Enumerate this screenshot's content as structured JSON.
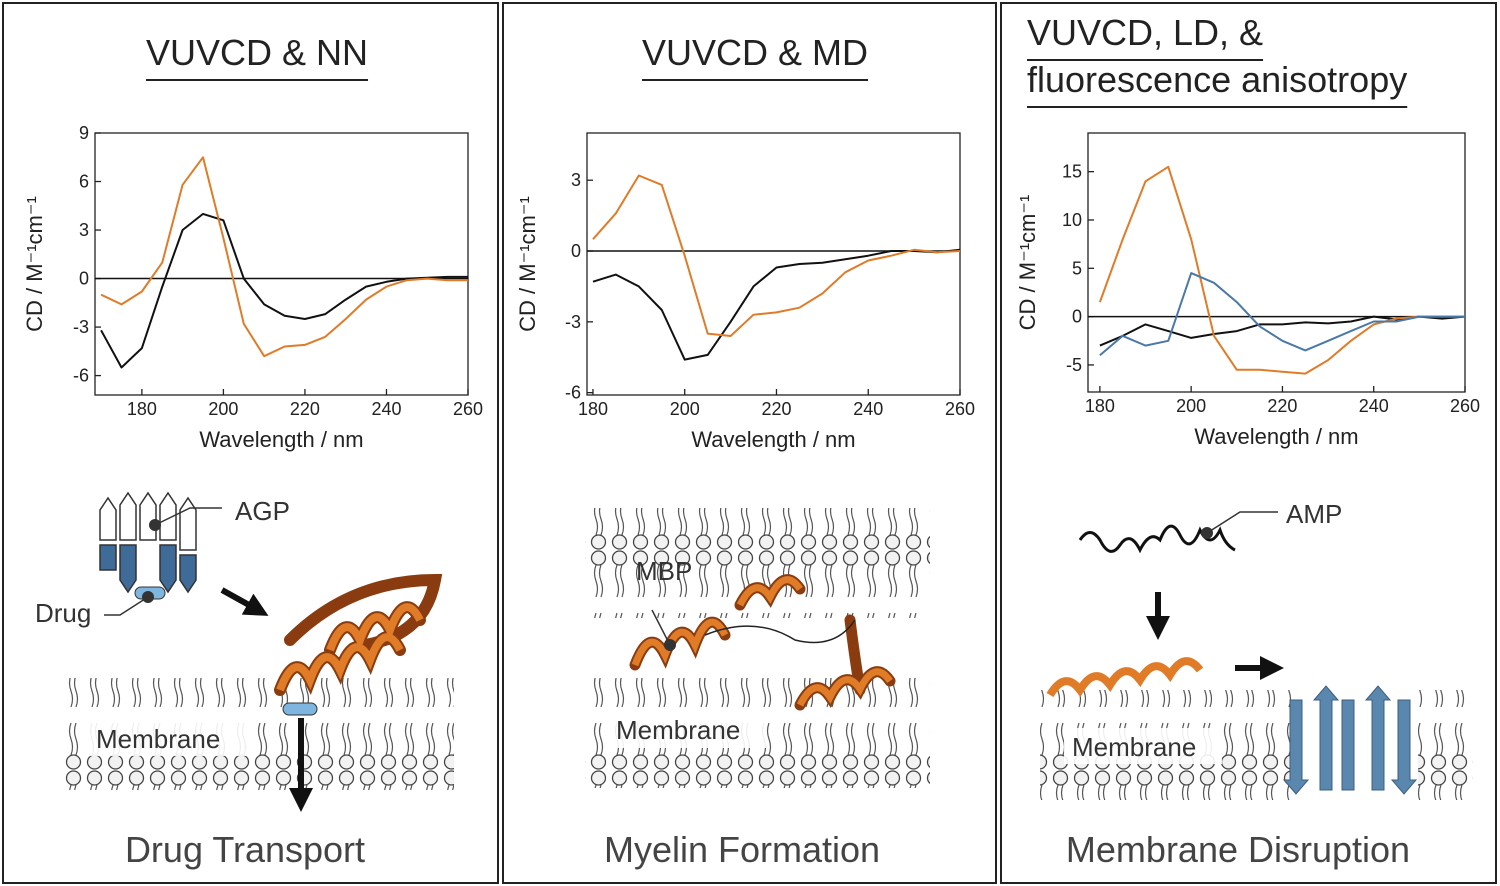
{
  "chart_data": [
    {
      "type": "line",
      "title": [
        "VUVCD & NN"
      ],
      "xlabel": "Wavelength / nm",
      "ylabel": "CD / M⁻¹cm⁻¹",
      "x": [
        170,
        175,
        180,
        185,
        190,
        195,
        200,
        205,
        210,
        215,
        220,
        225,
        230,
        235,
        240,
        245,
        250,
        255,
        260
      ],
      "xlim": [
        168.5,
        260
      ],
      "xticks": [
        180,
        200,
        220,
        240,
        260
      ],
      "ylim": [
        -7.2,
        9
      ],
      "yticks": [
        -6,
        -3,
        0,
        3,
        6,
        9
      ],
      "series": [
        {
          "color": "#111111",
          "values": [
            -3.2,
            -5.5,
            -4.3,
            -0.5,
            3,
            4,
            3.6,
            0,
            -1.6,
            -2.3,
            -2.5,
            -2.2,
            -1.3,
            -0.5,
            -0.2,
            0,
            0.05,
            0.1,
            0.1
          ]
        },
        {
          "color": "#e07b28",
          "values": [
            -1,
            -1.6,
            -0.8,
            1,
            5.8,
            7.5,
            2.5,
            -2.8,
            -4.8,
            -4.2,
            -4.1,
            -3.6,
            -2.5,
            -1.3,
            -0.5,
            -0.1,
            0,
            -0.1,
            -0.1
          ]
        }
      ]
    },
    {
      "type": "line",
      "title": [
        "VUVCD & MD"
      ],
      "xlabel": "Wavelength / nm",
      "ylabel": "CD / M⁻¹cm⁻¹",
      "x": [
        180,
        185,
        190,
        195,
        200,
        205,
        210,
        215,
        220,
        225,
        230,
        235,
        240,
        245,
        250,
        255,
        260
      ],
      "xlim": [
        178.7,
        260
      ],
      "xticks": [
        180,
        200,
        220,
        240,
        260
      ],
      "ylim": [
        -6.1,
        5.0
      ],
      "yticks": [
        -6,
        -3,
        0,
        3
      ],
      "series": [
        {
          "color": "#111111",
          "values": [
            -1.3,
            -1,
            -1.5,
            -2.5,
            -4.6,
            -4.4,
            -3,
            -1.5,
            -0.7,
            -0.55,
            -0.5,
            -0.35,
            -0.2,
            0,
            0,
            -0.05,
            0.05
          ]
        },
        {
          "color": "#e07b28",
          "values": [
            0.5,
            1.6,
            3.2,
            2.8,
            -0.2,
            -3.5,
            -3.6,
            -2.7,
            -2.6,
            -2.4,
            -1.8,
            -0.9,
            -0.4,
            -0.2,
            0.05,
            -0.05,
            0
          ]
        }
      ]
    },
    {
      "type": "line",
      "title": [
        "VUVCD, LD, &",
        "fluorescence anisotropy"
      ],
      "xlabel": "Wavelength / nm",
      "ylabel": "CD / M⁻¹cm⁻¹",
      "x": [
        180,
        185,
        190,
        195,
        200,
        205,
        210,
        215,
        220,
        225,
        230,
        235,
        240,
        245,
        250,
        255,
        260
      ],
      "xlim": [
        177.4,
        260
      ],
      "xticks": [
        180,
        200,
        220,
        240,
        260
      ],
      "ylim": [
        -7.8,
        19
      ],
      "yticks": [
        -5,
        0,
        5,
        10,
        15
      ],
      "series": [
        {
          "color": "#111111",
          "values": [
            -3,
            -2,
            -0.8,
            -1.5,
            -2.2,
            -1.8,
            -1.5,
            -0.8,
            -0.8,
            -0.6,
            -0.7,
            -0.5,
            0,
            -0.3,
            0,
            -0.2,
            0
          ]
        },
        {
          "color": "#e07b28",
          "values": [
            1.5,
            8,
            14,
            15.5,
            8,
            -2,
            -5.5,
            -5.5,
            -5.7,
            -5.9,
            -4.5,
            -2.5,
            -0.8,
            -0.2,
            0,
            0,
            0
          ]
        },
        {
          "color": "#4a78a8",
          "values": [
            -4,
            -2,
            -3,
            -2.5,
            4.5,
            3.5,
            1.5,
            -1,
            -2.5,
            -3.5,
            -2.5,
            -1.5,
            -0.5,
            -0.5,
            0,
            0,
            0
          ]
        }
      ]
    }
  ],
  "panels": [
    {
      "labels": [
        "AGP",
        "Drug",
        "Membrane"
      ],
      "caption": "Drug Transport"
    },
    {
      "labels": [
        "MBP",
        "Membrane"
      ],
      "caption": "Myelin Formation"
    },
    {
      "labels": [
        "AMP",
        "Membrane"
      ],
      "caption": "Membrane Disruption"
    }
  ]
}
